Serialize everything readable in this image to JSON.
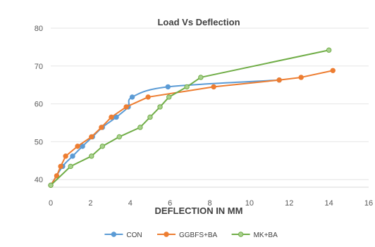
{
  "chart_data": {
    "type": "line",
    "title": "Load Vs Deflection",
    "xlabel": "DEFLECTION IN MM",
    "ylabel": "",
    "xlim": [
      0,
      16
    ],
    "ylim": [
      38,
      80
    ],
    "xticks": [
      0,
      2,
      4,
      6,
      8,
      10,
      12,
      14,
      16
    ],
    "yticks": [
      40,
      50,
      60,
      70,
      80
    ],
    "grid": {
      "x": false,
      "y": true
    },
    "legend": "bottom-center",
    "series": [
      {
        "name": "CON",
        "color": "#5b9bd5",
        "smooth": true,
        "x": [
          0,
          0.6,
          1.1,
          1.6,
          2.1,
          2.6,
          3.3,
          3.9,
          4.1,
          5.9,
          11.5
        ],
        "y": [
          38.5,
          43.5,
          46.2,
          48.8,
          51.3,
          53.8,
          56.5,
          59.2,
          61.8,
          64.5,
          66.3
        ]
      },
      {
        "name": "GGBFS+BA",
        "color": "#ed7d31",
        "smooth": false,
        "x": [
          0,
          0.3,
          0.5,
          0.75,
          1.35,
          2.05,
          2.55,
          3.05,
          3.8,
          4.9,
          8.2,
          11.5,
          12.6,
          14.2
        ],
        "y": [
          38.5,
          41.0,
          43.5,
          46.2,
          48.8,
          51.3,
          53.8,
          56.5,
          59.2,
          61.8,
          64.5,
          66.3,
          67.0,
          68.8
        ]
      },
      {
        "name": "MK+BA",
        "color": "#70ad47",
        "marker_fill": "#a9d18e",
        "smooth": false,
        "x": [
          0,
          1.0,
          2.05,
          2.6,
          3.45,
          4.5,
          5.0,
          5.5,
          5.95,
          6.85,
          7.55,
          14.0
        ],
        "y": [
          38.5,
          43.5,
          46.2,
          48.8,
          51.3,
          53.8,
          56.5,
          59.2,
          61.8,
          64.5,
          67.0,
          74.2
        ]
      }
    ]
  }
}
